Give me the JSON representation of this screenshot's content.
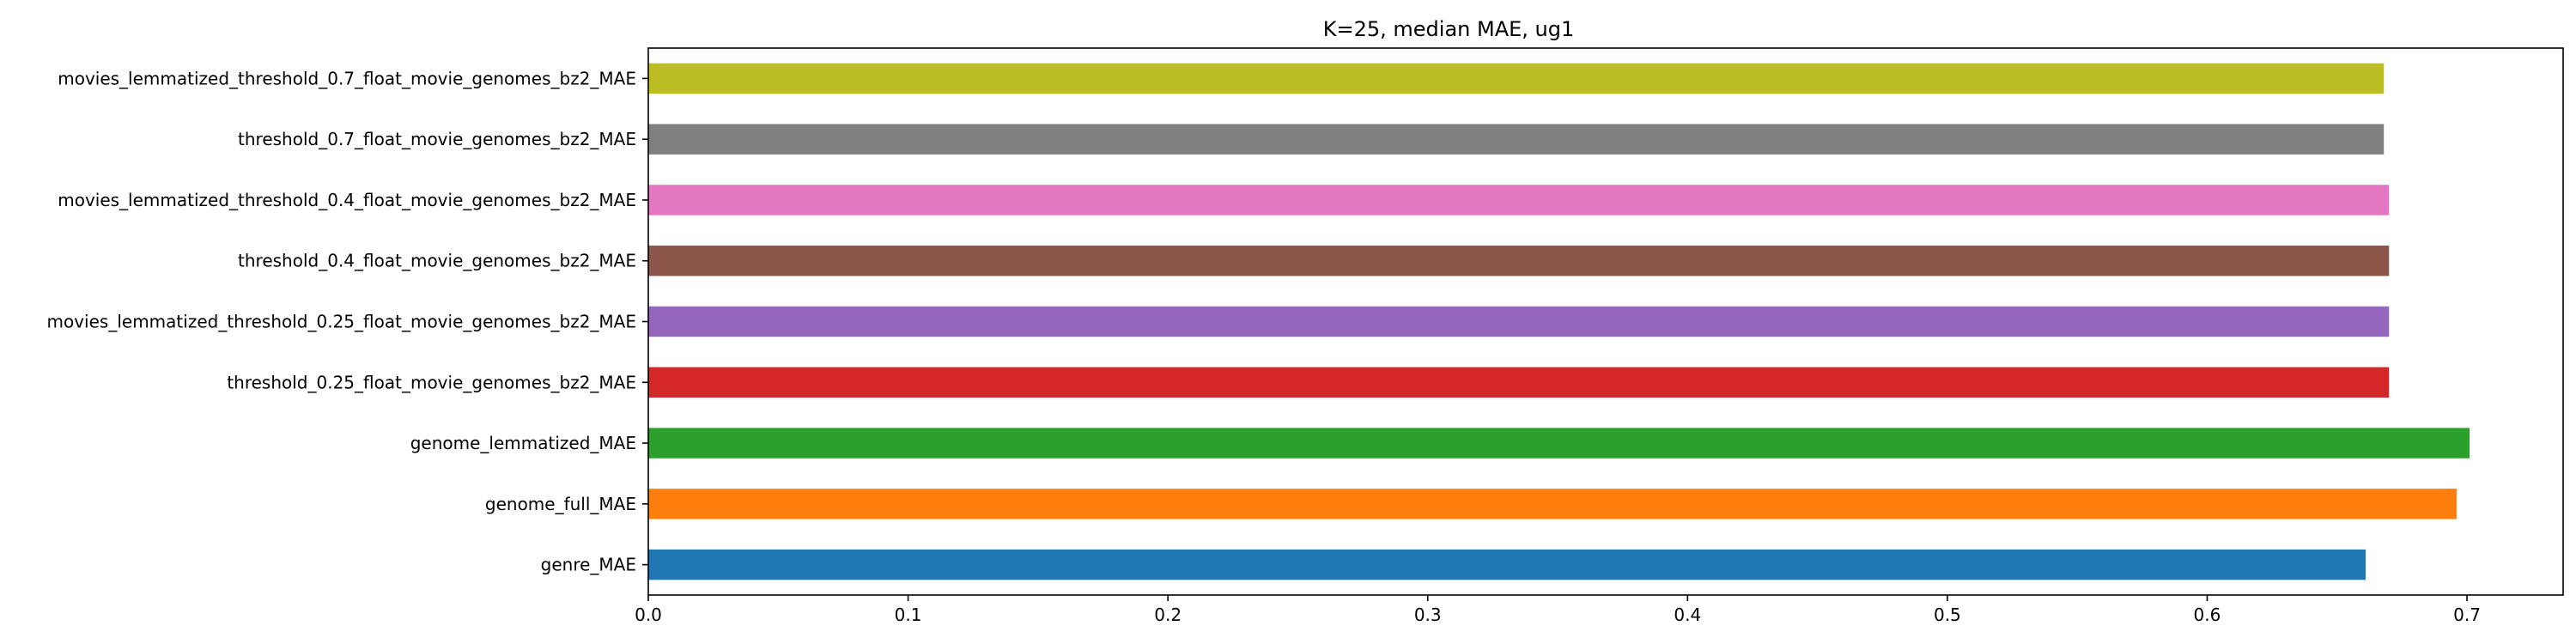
{
  "chart_data": {
    "type": "bar",
    "orientation": "horizontal",
    "title": "K=25, median MAE, ug1",
    "xlabel": "",
    "ylabel": "",
    "xlim": [
      0.0,
      0.737
    ],
    "xticks": [
      "0.0",
      "0.1",
      "0.2",
      "0.3",
      "0.4",
      "0.5",
      "0.6",
      "0.7"
    ],
    "grid": false,
    "legend": "none",
    "categories": [
      "genre_MAE",
      "genome_full_MAE",
      "genome_lemmatized_MAE",
      "threshold_0.25_float_movie_genomes_bz2_MAE",
      "movies_lemmatized_threshold_0.25_float_movie_genomes_bz2_MAE",
      "threshold_0.4_float_movie_genomes_bz2_MAE",
      "movies_lemmatized_threshold_0.4_float_movie_genomes_bz2_MAE",
      "threshold_0.7_float_movie_genomes_bz2_MAE",
      "movies_lemmatized_threshold_0.7_float_movie_genomes_bz2_MAE"
    ],
    "values": [
      0.661,
      0.696,
      0.701,
      0.67,
      0.67,
      0.67,
      0.67,
      0.668,
      0.668
    ],
    "colors": [
      "#1f77b4",
      "#ff7f0e",
      "#2ca02c",
      "#d62728",
      "#9467bd",
      "#8c564b",
      "#e377c2",
      "#7f7f7f",
      "#bcbd22"
    ]
  }
}
